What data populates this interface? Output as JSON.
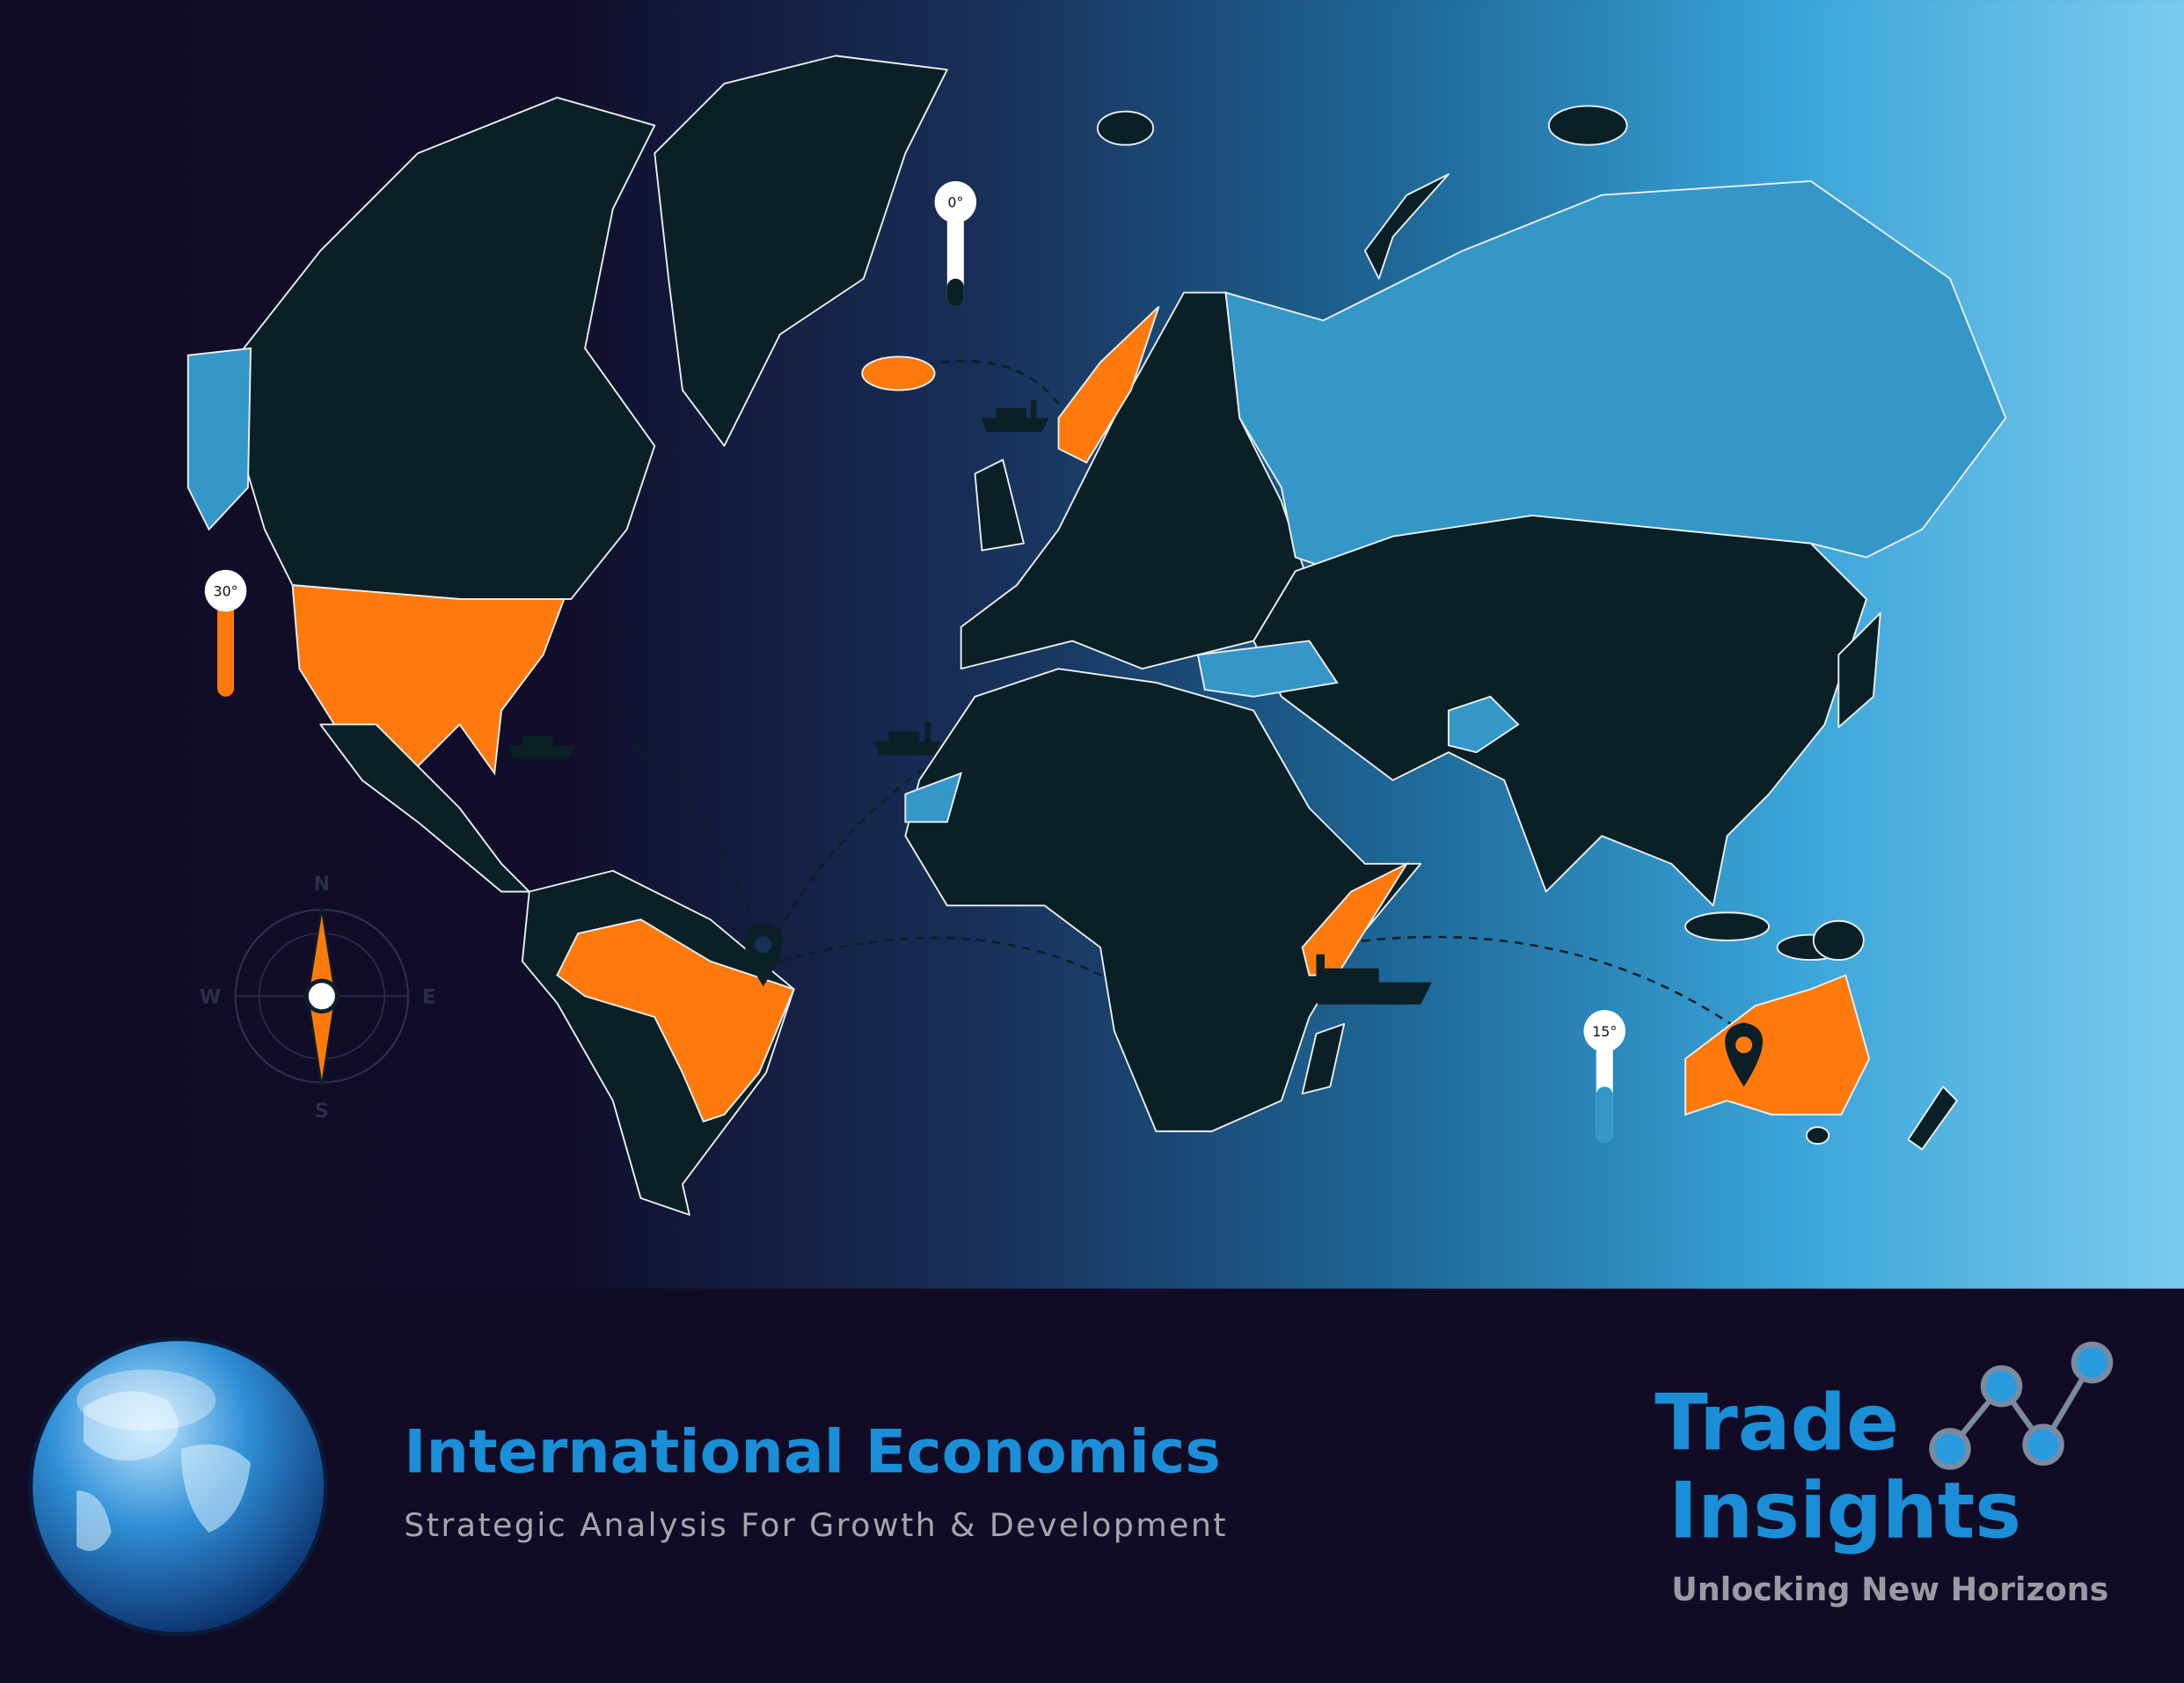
{
  "map": {
    "thermometers": [
      {
        "label": "0°"
      },
      {
        "label": "30°"
      },
      {
        "label": "15°"
      }
    ]
  },
  "compass": {
    "n": "N",
    "e": "E",
    "s": "S",
    "w": "W"
  },
  "footer": {
    "title": "International Economics",
    "subtitle": "Strategic Analysis For Growth & Development"
  },
  "logo": {
    "word1": "Trade",
    "word2": "Insights",
    "tagline": "Unlocking New Horizons"
  }
}
